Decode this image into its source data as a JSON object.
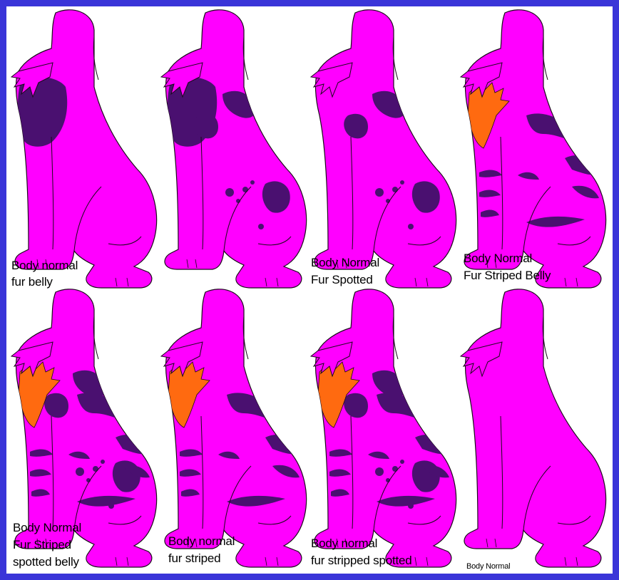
{
  "colors": {
    "frame": "#3a35d8",
    "body": "#ff00ff",
    "markings": "#4a1070",
    "belly": "#ff6a10",
    "outline": "#1a0a1a",
    "background": "#ffffff"
  },
  "variants": [
    {
      "label_line1": "Body normal",
      "label_line2": "fur belly",
      "pattern": "dark-chest-belly"
    },
    {
      "label_line1": "",
      "label_line2": "",
      "pattern": "dark-chest-spots"
    },
    {
      "label_line1": "Body Normal",
      "label_line2": "Fur Spotted",
      "pattern": "spotted"
    },
    {
      "label_line1": "Body Normal",
      "label_line2": "Fur Striped Belly",
      "pattern": "striped-orange-belly"
    },
    {
      "label_line1": "Body Normal",
      "label_line2": "Fur Striped",
      "label_line3": "spotted belly",
      "pattern": "striped-spotted-orange-belly"
    },
    {
      "label_line1": "Body normal",
      "label_line2": "fur striped",
      "pattern": "striped-orange"
    },
    {
      "label_line1": "Body normal",
      "label_line2": "fur stripped spotted",
      "pattern": "striped-spotted-orange"
    },
    {
      "label_line1": "Body Normal",
      "label_line2": "",
      "pattern": "plain"
    }
  ]
}
